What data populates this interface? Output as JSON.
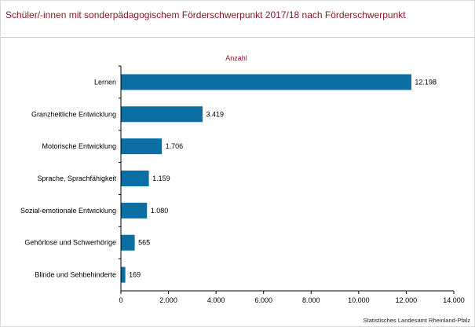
{
  "title": "Schüler/-innen mit sonderpädagogischem Förderschwerpunkt 2017/18 nach Förderschwerpunkt",
  "source": "Statistisches Landesamt Rheinland-Pfalz",
  "colors": {
    "bar": "#0b6fa4",
    "title": "#8b1a2b",
    "axis": "#000000"
  },
  "chart_data": {
    "type": "bar",
    "orientation": "horizontal",
    "title": "Schüler/-innen mit sonderpädagogischem Förderschwerpunkt 2017/18 nach Förderschwerpunkt",
    "series_label": "Anzahl",
    "categories": [
      "Lernen",
      "Granzheitliche Entwicklung",
      "Motorische Entwicklung",
      "Sprache, Sprachfähigkeit",
      "Sozial-emotionale Entwicklung",
      "Gehörlose und Schwerhörige",
      "Blinde und Sehbehinderte"
    ],
    "values": [
      12198,
      3419,
      1706,
      1159,
      1080,
      565,
      169
    ],
    "value_labels": [
      "12.198",
      "3.419",
      "1.706",
      "1.159",
      "1.080",
      "565",
      "169"
    ],
    "xlim": [
      0,
      14000
    ],
    "xticks": [
      0,
      2000,
      4000,
      6000,
      8000,
      10000,
      12000,
      14000
    ],
    "xtick_labels": [
      "0",
      "2.000",
      "4.000",
      "6.000",
      "8.000",
      "10.000",
      "12.000",
      "14.000"
    ],
    "grid": false
  }
}
